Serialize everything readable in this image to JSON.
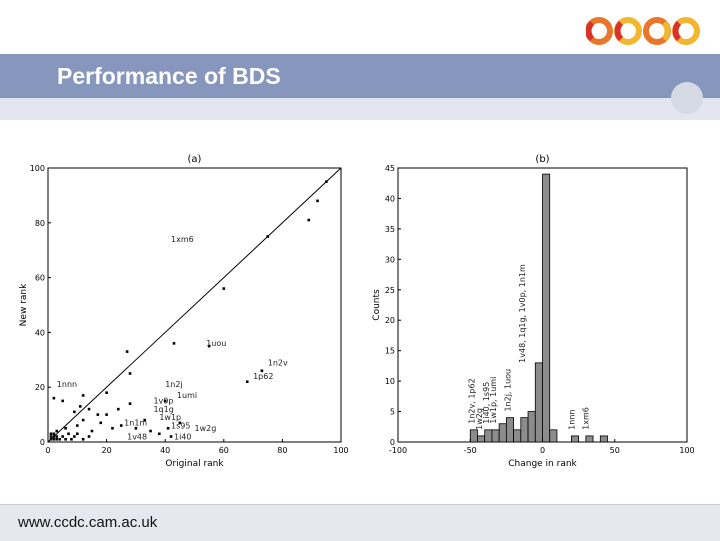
{
  "slide": {
    "title": "Performance of BDS",
    "footer_url": "www.ccdc.cam.ac.uk",
    "colors": {
      "band": "#8696bd",
      "logo_orange": "#e9762b",
      "logo_red": "#d9322a",
      "logo_yellow": "#f3b630"
    }
  },
  "chart_data": [
    {
      "type": "scatter",
      "title": "(a)",
      "xlabel": "Original rank",
      "ylabel": "New rank",
      "xlim": [
        0,
        100
      ],
      "ylim": [
        0,
        100
      ],
      "xticks": [
        "0",
        "20",
        "40",
        "60",
        "80",
        "100"
      ],
      "yticks": [
        "0",
        "20",
        "40",
        "60",
        "80",
        "100"
      ],
      "diagonal": [
        [
          0,
          0
        ],
        [
          100,
          100
        ]
      ],
      "points": [
        [
          1,
          1
        ],
        [
          2,
          1
        ],
        [
          1,
          2
        ],
        [
          2,
          2
        ],
        [
          3,
          1
        ],
        [
          1,
          3
        ],
        [
          2,
          3
        ],
        [
          3,
          2
        ],
        [
          4,
          1
        ],
        [
          3,
          4
        ],
        [
          5,
          2
        ],
        [
          6,
          1
        ],
        [
          7,
          3
        ],
        [
          8,
          1
        ],
        [
          9,
          2
        ],
        [
          10,
          3
        ],
        [
          12,
          1
        ],
        [
          14,
          2
        ],
        [
          15,
          4
        ],
        [
          10,
          6
        ],
        [
          12,
          8
        ],
        [
          18,
          7
        ],
        [
          6,
          5
        ],
        [
          9,
          11
        ],
        [
          11,
          13
        ],
        [
          14,
          12
        ],
        [
          17,
          10
        ],
        [
          20,
          10
        ],
        [
          22,
          5
        ],
        [
          25,
          6
        ],
        [
          24,
          12
        ],
        [
          28,
          14
        ],
        [
          30,
          5
        ],
        [
          33,
          8
        ],
        [
          35,
          4
        ],
        [
          38,
          3
        ],
        [
          41,
          5
        ],
        [
          42,
          2
        ],
        [
          45,
          7
        ],
        [
          40,
          15
        ],
        [
          2,
          16
        ],
        [
          5,
          15
        ],
        [
          12,
          17
        ],
        [
          20,
          18
        ],
        [
          27,
          33
        ],
        [
          28,
          25
        ],
        [
          43,
          36
        ],
        [
          55,
          35
        ],
        [
          60,
          56
        ],
        [
          68,
          22
        ],
        [
          73,
          26
        ],
        [
          75,
          75
        ],
        [
          89,
          81
        ],
        [
          92,
          88
        ],
        [
          95,
          95
        ]
      ],
      "labels": [
        {
          "text": "1xm6",
          "x": 42,
          "y": 73
        },
        {
          "text": "1uou",
          "x": 54,
          "y": 35
        },
        {
          "text": "1n2v",
          "x": 75,
          "y": 28
        },
        {
          "text": "1p62",
          "x": 70,
          "y": 23
        },
        {
          "text": "1nnn",
          "x": 3,
          "y": 20
        },
        {
          "text": "1n2j",
          "x": 40,
          "y": 20
        },
        {
          "text": "1umi",
          "x": 44,
          "y": 16
        },
        {
          "text": "1v0p",
          "x": 36,
          "y": 14
        },
        {
          "text": "1q1g",
          "x": 36,
          "y": 11
        },
        {
          "text": "1w1p",
          "x": 38,
          "y": 8
        },
        {
          "text": "1n1m",
          "x": 26,
          "y": 6
        },
        {
          "text": "1s95",
          "x": 42,
          "y": 5
        },
        {
          "text": "1w2g",
          "x": 50,
          "y": 4
        },
        {
          "text": "1v48",
          "x": 27,
          "y": 1
        },
        {
          "text": "1i40",
          "x": 43,
          "y": 1
        }
      ]
    },
    {
      "type": "bar",
      "title": "(b)",
      "xlabel": "Change in rank",
      "ylabel": "Counts",
      "xlim": [
        -100,
        100
      ],
      "ylim": [
        0,
        45
      ],
      "xticks": [
        "-100",
        "-50",
        "0",
        "50",
        "100"
      ],
      "yticks": [
        "0",
        "5",
        "10",
        "15",
        "20",
        "25",
        "30",
        "35",
        "40",
        "45"
      ],
      "bin_width": 5,
      "bins": [
        {
          "start": -50,
          "count": 2
        },
        {
          "start": -45,
          "count": 1
        },
        {
          "start": -40,
          "count": 2
        },
        {
          "start": -35,
          "count": 2
        },
        {
          "start": -30,
          "count": 3
        },
        {
          "start": -25,
          "count": 4
        },
        {
          "start": -20,
          "count": 2
        },
        {
          "start": -15,
          "count": 4
        },
        {
          "start": -10,
          "count": 5
        },
        {
          "start": -5,
          "count": 13
        },
        {
          "start": 0,
          "count": 44
        },
        {
          "start": 5,
          "count": 2
        },
        {
          "start": 20,
          "count": 1
        },
        {
          "start": 30,
          "count": 1
        },
        {
          "start": 40,
          "count": 1
        }
      ],
      "labels": [
        {
          "text": "1n2v, 1p62",
          "x": -47,
          "y": 3
        },
        {
          "text": "1w2g",
          "x": -42,
          "y": 2
        },
        {
          "text": "1i40, 1s95",
          "x": -37,
          "y": 3
        },
        {
          "text": "1w1p, 1umi",
          "x": -32,
          "y": 3
        },
        {
          "text": "1n2j, 1uou",
          "x": -22,
          "y": 5
        },
        {
          "text": "1v48, 1q1g, 1v0p, 1n1m",
          "x": -12,
          "y": 13
        },
        {
          "text": "1nnn",
          "x": 22,
          "y": 2
        },
        {
          "text": "1xm6",
          "x": 32,
          "y": 2
        }
      ]
    }
  ]
}
